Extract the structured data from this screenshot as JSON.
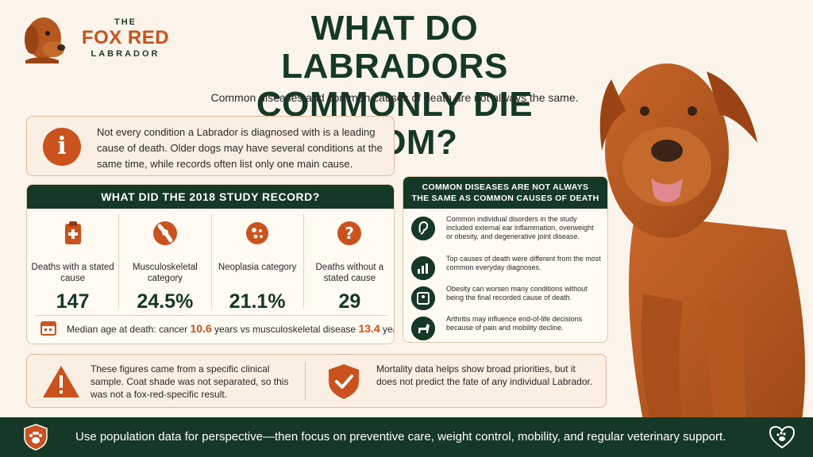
{
  "logo": {
    "the": "THE",
    "name": "FOX RED",
    "sub": "LABRADOR"
  },
  "header": {
    "title": "WHAT DO LABRADORS COMMONLY DIE FROM?",
    "subtitle": "Common diseases and common causes of death are not always the same."
  },
  "info": {
    "text": "Not every condition a Labrador is diagnosed with is a leading cause of death. Older dogs may have several conditions at the same time, while records often list only one main cause."
  },
  "study": {
    "heading": "WHAT DID THE 2018 STUDY RECORD?",
    "stats": [
      {
        "label": "Deaths with a stated cause",
        "value": "147",
        "icon": "clipboard-icon"
      },
      {
        "label": "Musculoskeletal category",
        "value": "24.5%",
        "icon": "bone-joint-icon"
      },
      {
        "label": "Neoplasia category",
        "value": "21.1%",
        "icon": "cell-icon"
      },
      {
        "label": "Deaths without a stated cause",
        "value": "29",
        "icon": "question-icon"
      }
    ],
    "median": {
      "prefix": "Median age at death: cancer ",
      "cancer_age": "10.6",
      "middle": " years vs musculoskeletal disease ",
      "musculo_age": "13.4",
      "suffix": " years."
    }
  },
  "panel": {
    "heading_line1": "COMMON DISEASES ARE NOT ALWAYS",
    "heading_line2": "THE SAME AS COMMON CAUSES OF DEATH",
    "items": [
      {
        "text": "Common individual disorders in the study included external ear inflammation, overweight or obesity, and degenerative joint disease.",
        "icon": "ear-icon"
      },
      {
        "text": "Top causes of death were different from the most common everyday diagnoses.",
        "icon": "chart-icon"
      },
      {
        "text": "Obesity can worsen many conditions without being the final recorded cause of death.",
        "icon": "scale-icon"
      },
      {
        "text": "Arthritis may influence end-of-life decisions because of pain and mobility decline.",
        "icon": "dog-icon"
      }
    ]
  },
  "bottom": {
    "warning": "These figures came from a specific clinical sample. Coat shade was not separated, so this was not a fox-red-specific result.",
    "note": "Mortality data helps show broad priorities, but it does not predict the fate of any individual Labrador."
  },
  "footer": {
    "text": "Use population data for perspective—then focus on preventive care, weight control, mobility, and regular veterinary support."
  },
  "colors": {
    "green": "#163826",
    "orange": "#c9521e",
    "cream": "#faf4ea",
    "fur": "#b5581f"
  }
}
